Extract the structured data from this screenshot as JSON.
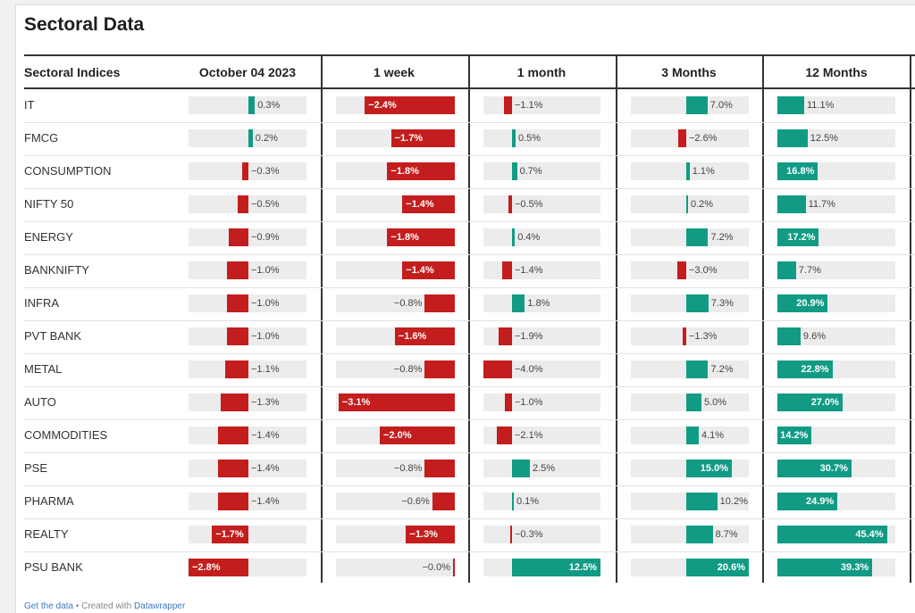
{
  "title": "Sectoral Data",
  "colors": {
    "positive": "#119b84",
    "negative": "#c41d1d",
    "track": "#ececec"
  },
  "chart_data": {
    "type": "table",
    "row_header": "Sectoral Indices",
    "columns": [
      "October 04 2023",
      "1 week",
      "1 month",
      "3 Months",
      "12 Months"
    ],
    "unit": "%",
    "rows": [
      {
        "name": "IT",
        "values": [
          0.3,
          -2.4,
          -1.1,
          7.0,
          11.1
        ],
        "labels": [
          "0.3%",
          "-2.4%",
          "-1.1%",
          "7.0%",
          "11.1%"
        ]
      },
      {
        "name": "FMCG",
        "values": [
          0.2,
          -1.7,
          0.5,
          -2.6,
          12.5
        ],
        "labels": [
          "0.2%",
          "-1.7%",
          "0.5%",
          "-2.6%",
          "12.5%"
        ]
      },
      {
        "name": "CONSUMPTION",
        "values": [
          -0.3,
          -1.8,
          0.7,
          1.1,
          16.8
        ],
        "labels": [
          "-0.3%",
          "-1.8%",
          "0.7%",
          "1.1%",
          "16.8%"
        ]
      },
      {
        "name": "NIFTY 50",
        "values": [
          -0.5,
          -1.4,
          -0.5,
          0.2,
          11.7
        ],
        "labels": [
          "-0.5%",
          "-1.4%",
          "-0.5%",
          "0.2%",
          "11.7%"
        ]
      },
      {
        "name": "ENERGY",
        "values": [
          -0.9,
          -1.8,
          0.4,
          7.2,
          17.2
        ],
        "labels": [
          "-0.9%",
          "-1.8%",
          "0.4%",
          "7.2%",
          "17.2%"
        ]
      },
      {
        "name": "BANKNIFTY",
        "values": [
          -1.0,
          -1.4,
          -1.4,
          -3.0,
          7.7
        ],
        "labels": [
          "-1.0%",
          "-1.4%",
          "-1.4%",
          "-3.0%",
          "7.7%"
        ]
      },
      {
        "name": "INFRA",
        "values": [
          -1.0,
          -0.8,
          1.8,
          7.3,
          20.9
        ],
        "labels": [
          "-1.0%",
          "-0.8%",
          "1.8%",
          "7.3%",
          "20.9%"
        ]
      },
      {
        "name": "PVT BANK",
        "values": [
          -1.0,
          -1.6,
          -1.9,
          -1.3,
          9.6
        ],
        "labels": [
          "-1.0%",
          "-1.6%",
          "-1.9%",
          "-1.3%",
          "9.6%"
        ]
      },
      {
        "name": "METAL",
        "values": [
          -1.1,
          -0.8,
          -4.0,
          7.2,
          22.8
        ],
        "labels": [
          "-1.1%",
          "-0.8%",
          "-4.0%",
          "7.2%",
          "22.8%"
        ]
      },
      {
        "name": "AUTO",
        "values": [
          -1.3,
          -3.1,
          -1.0,
          5.0,
          27.0
        ],
        "labels": [
          "-1.3%",
          "-3.1%",
          "-1.0%",
          "5.0%",
          "27.0%"
        ]
      },
      {
        "name": "COMMODITIES",
        "values": [
          -1.4,
          -2.0,
          -2.1,
          4.1,
          14.2
        ],
        "labels": [
          "-1.4%",
          "-2.0%",
          "-2.1%",
          "4.1%",
          "14.2%"
        ]
      },
      {
        "name": "PSE",
        "values": [
          -1.4,
          -0.8,
          2.5,
          15.0,
          30.7
        ],
        "labels": [
          "-1.4%",
          "-0.8%",
          "2.5%",
          "15.0%",
          "30.7%"
        ]
      },
      {
        "name": "PHARMA",
        "values": [
          -1.4,
          -0.6,
          0.1,
          10.2,
          24.9
        ],
        "labels": [
          "-1.4%",
          "-0.6%",
          "0.1%",
          "10.2%",
          "24.9%"
        ]
      },
      {
        "name": "REALTY",
        "values": [
          -1.7,
          -1.3,
          -0.3,
          8.7,
          45.4
        ],
        "labels": [
          "-1.7%",
          "-1.3%",
          "-0.3%",
          "8.7%",
          "45.4%"
        ]
      },
      {
        "name": "PSU BANK",
        "values": [
          -2.8,
          -0.0,
          12.5,
          20.6,
          39.3
        ],
        "labels": [
          "-2.8%",
          "-0.0%",
          "12.5%",
          "20.6%",
          "39.3%"
        ]
      }
    ]
  },
  "footer": {
    "get_data": "Get the data",
    "separator": " • Created with ",
    "tool": "Datawrapper"
  }
}
